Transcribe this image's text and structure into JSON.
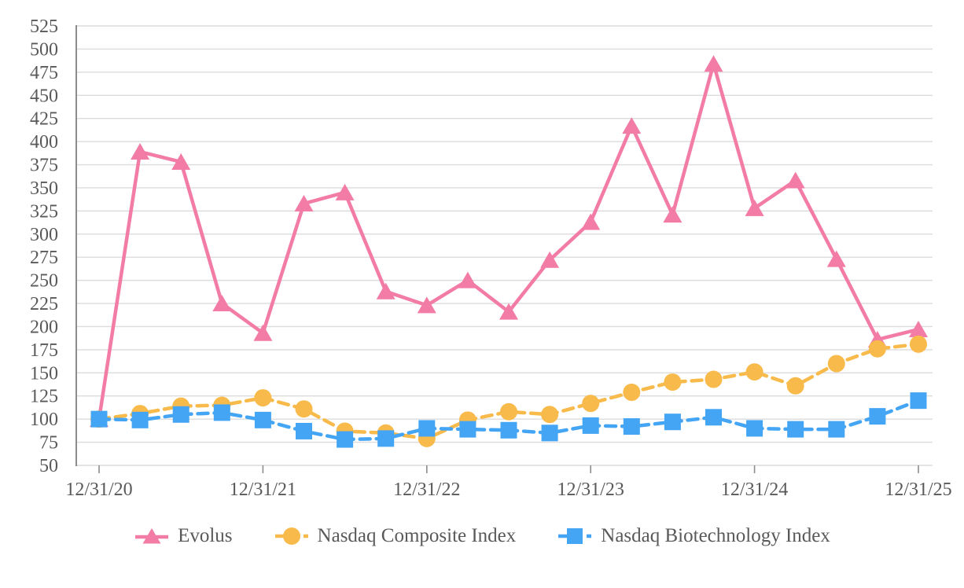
{
  "chart_data": {
    "type": "line",
    "x_tick_labels": [
      "12/31/20",
      "12/31/21",
      "12/31/22",
      "12/31/23",
      "12/31/24",
      "12/31/25"
    ],
    "x_points_per_tick": 4,
    "ylim": [
      50,
      525
    ],
    "y_tick_step": 25,
    "grid": "horizontal",
    "legend_position": "bottom-center",
    "colors": {
      "background": "#FFFFFF",
      "gridline": "#DCDCDC",
      "axis_line": "#8C8C8C",
      "axis_text": "#595959"
    },
    "series": [
      {
        "name": "Evolus",
        "color": "#F27CA5",
        "line_style": "solid",
        "marker": "triangle",
        "values": [
          100,
          389,
          378,
          225,
          193,
          333,
          345,
          238,
          223,
          250,
          216,
          272,
          313,
          417,
          321,
          484,
          328,
          358,
          273,
          186,
          197
        ]
      },
      {
        "name": "Nasdaq Composite Index",
        "color": "#F8BA4A",
        "line_style": "dashed",
        "marker": "circle",
        "values": [
          100,
          106,
          114,
          115,
          123,
          111,
          87,
          85,
          79,
          99,
          108,
          105,
          117,
          129,
          140,
          143,
          151,
          136,
          160,
          176,
          181
        ]
      },
      {
        "name": "Nasdaq Biotechnology Index",
        "color": "#44A5F4",
        "line_style": "dashed",
        "marker": "square",
        "values": [
          100,
          99,
          105,
          107,
          99,
          87,
          78,
          79,
          90,
          89,
          88,
          85,
          93,
          92,
          97,
          102,
          90,
          89,
          89,
          103,
          120
        ]
      }
    ]
  }
}
